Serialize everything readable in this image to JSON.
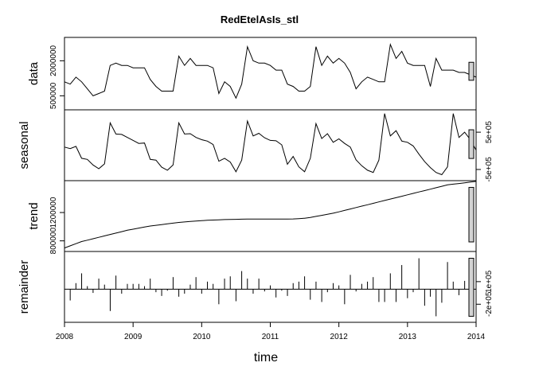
{
  "chart_data": {
    "type": "line",
    "title": "RedEtelAsIs_stl",
    "xlabel": "time",
    "x_axis": {
      "range": [
        2008,
        2014
      ],
      "ticks": [
        2008,
        2009,
        2010,
        2011,
        2012,
        2013,
        2014
      ],
      "tick_labels": [
        "2008",
        "2009",
        "2010",
        "2011",
        "2012",
        "2013",
        "2014"
      ]
    },
    "start": 2008.0,
    "frequency": 12,
    "panels": [
      {
        "key": "data",
        "ylabel": "data",
        "ylim": [
          -100000,
          3000000
        ],
        "tick_values": [
          500000,
          2000000
        ],
        "tick_labels": [
          "500000",
          "2000000"
        ],
        "axis_side": "left",
        "values": [
          1100000,
          1000000,
          1300000,
          1100000,
          800000,
          500000,
          600000,
          700000,
          1800000,
          1900000,
          1800000,
          1800000,
          1700000,
          1700000,
          1700000,
          1200000,
          900000,
          700000,
          700000,
          700000,
          2200000,
          1800000,
          2100000,
          1800000,
          1800000,
          1800000,
          1700000,
          600000,
          1100000,
          900000,
          400000,
          1000000,
          2600000,
          2000000,
          1900000,
          1900000,
          1800000,
          1600000,
          1600000,
          1000000,
          900000,
          700000,
          700000,
          900000,
          2600000,
          1800000,
          2200000,
          1900000,
          2100000,
          1900000,
          1500000,
          800000,
          1100000,
          1300000,
          1200000,
          1100000,
          1100000,
          2700000,
          2100000,
          2400000,
          1900000,
          1800000,
          1800000,
          1800000,
          900000,
          2100000,
          1600000,
          1600000,
          1600000,
          1500000,
          1500000,
          1400000,
          1300000
        ]
      },
      {
        "key": "seasonal",
        "ylabel": "seasonal",
        "ylim": [
          -800000,
          1100000
        ],
        "tick_values": [
          -500000,
          500000
        ],
        "tick_labels": [
          "-5e+05",
          "5e+05"
        ],
        "axis_side": "right",
        "values": [
          100000,
          60000,
          120000,
          -200000,
          -230000,
          -380000,
          -480000,
          -350000,
          750000,
          450000,
          440000,
          360000,
          280000,
          200000,
          210000,
          -230000,
          -250000,
          -440000,
          -520000,
          -380000,
          750000,
          450000,
          460000,
          360000,
          300000,
          260000,
          170000,
          -280000,
          -200000,
          -300000,
          -560000,
          -250000,
          800000,
          400000,
          470000,
          350000,
          280000,
          270000,
          160000,
          -360000,
          -150000,
          -430000,
          -560000,
          -200000,
          730000,
          330000,
          460000,
          230000,
          320000,
          200000,
          100000,
          -240000,
          -400000,
          -520000,
          -580000,
          -250000,
          1000000,
          400000,
          540000,
          260000,
          230000,
          130000,
          -90000,
          -290000,
          -450000,
          -580000,
          -640000,
          -430000,
          1000000,
          360000,
          500000,
          300000,
          20000
        ]
      },
      {
        "key": "trend",
        "ylabel": "trend",
        "ylim": [
          650000,
          1650000
        ],
        "tick_values": [
          800000,
          1200000
        ],
        "tick_labels": [
          "800000",
          "1200000"
        ],
        "axis_side": "left",
        "values": [
          700000,
          730000,
          760000,
          790000,
          810000,
          830000,
          850000,
          870000,
          890000,
          910000,
          930000,
          950000,
          965000,
          980000,
          995000,
          1010000,
          1020000,
          1030000,
          1040000,
          1050000,
          1060000,
          1067000,
          1074000,
          1080000,
          1085000,
          1090000,
          1094000,
          1097000,
          1100000,
          1102000,
          1104000,
          1106000,
          1107000,
          1108000,
          1108000,
          1108000,
          1108000,
          1108000,
          1108000,
          1108000,
          1110000,
          1114000,
          1120000,
          1130000,
          1145000,
          1160000,
          1175000,
          1190000,
          1210000,
          1230000,
          1250000,
          1270000,
          1290000,
          1310000,
          1330000,
          1350000,
          1370000,
          1390000,
          1410000,
          1430000,
          1450000,
          1470000,
          1490000,
          1510000,
          1530000,
          1550000,
          1570000,
          1590000,
          1600000,
          1610000,
          1620000,
          1630000,
          1640000
        ]
      },
      {
        "key": "remainder",
        "ylabel": "remainder",
        "ylim": [
          -440000,
          500000
        ],
        "tick_values": [
          -200000,
          100000
        ],
        "tick_labels": [
          "-2e+05",
          "1e+05"
        ],
        "axis_side": "right",
        "values": [
          -80000,
          -150000,
          80000,
          210000,
          40000,
          -50000,
          140000,
          60000,
          -290000,
          180000,
          -60000,
          70000,
          70000,
          70000,
          40000,
          140000,
          -40000,
          -90000,
          -20000,
          160000,
          -100000,
          -60000,
          60000,
          160000,
          -60000,
          100000,
          70000,
          -200000,
          140000,
          170000,
          -160000,
          240000,
          140000,
          -60000,
          140000,
          -30000,
          50000,
          -110000,
          -20000,
          -90000,
          80000,
          100000,
          170000,
          -140000,
          100000,
          -170000,
          -40000,
          80000,
          50000,
          -200000,
          190000,
          -30000,
          70000,
          100000,
          160000,
          -170000,
          -170000,
          210000,
          -170000,
          320000,
          -120000,
          -40000,
          410000,
          -220000,
          -100000,
          -360000,
          -180000,
          360000,
          100000,
          -80000,
          110000,
          -340000,
          -20000
        ]
      }
    ],
    "range_bar_note": "scale bars at right edge of each panel show equal data range across panels"
  }
}
